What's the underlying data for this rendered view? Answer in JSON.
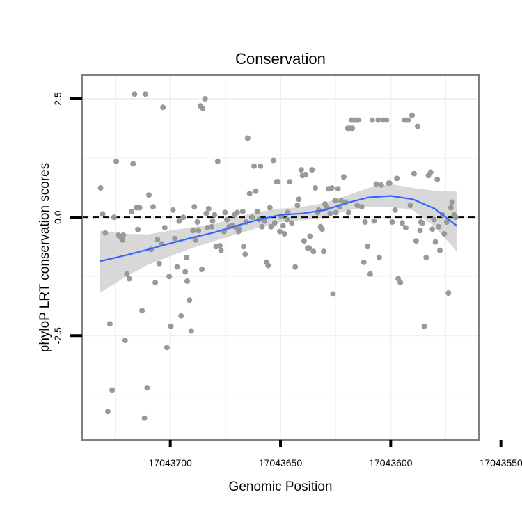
{
  "chart_data": {
    "type": "scatter",
    "title": "Conservation",
    "xlabel": "Genomic Position",
    "ylabel": "phyloP LRT conservation scores",
    "x_reversed": true,
    "xlim": [
      17043560,
      17043740
    ],
    "ylim": [
      -4.7,
      3.0
    ],
    "x_ticks": [
      17043700,
      17043650,
      17043600,
      17043550
    ],
    "x_tick_labels": [
      "17043700",
      "17043650",
      "17043600",
      "17043550"
    ],
    "y_ticks": [
      -2.5,
      0.0,
      2.5
    ],
    "y_tick_labels": [
      "-2.5",
      "0.0",
      "2.5"
    ],
    "grid": true,
    "reference_line": {
      "y": 0,
      "style": "dashed"
    },
    "colors": {
      "points": "#999999",
      "smooth_line": "#3366ff",
      "confidence_band": "#d6d6d6",
      "panel_border": "#808080",
      "grid": "#f0f0f0"
    },
    "points": [
      {
        "x": 17043731.6,
        "y": 0.62
      },
      {
        "x": 17043730.7,
        "y": 0.07
      },
      {
        "x": 17043729.5,
        "y": -0.33
      },
      {
        "x": 17043728.3,
        "y": -4.1
      },
      {
        "x": 17043727.4,
        "y": -2.25
      },
      {
        "x": 17043726.4,
        "y": -3.65
      },
      {
        "x": 17043725.5,
        "y": 0.0
      },
      {
        "x": 17043724.5,
        "y": 1.18
      },
      {
        "x": 17043723.6,
        "y": -0.38
      },
      {
        "x": 17043722.6,
        "y": -0.42
      },
      {
        "x": 17043721.6,
        "y": -0.48
      },
      {
        "x": 17043721.3,
        "y": -0.38
      },
      {
        "x": 17043720.5,
        "y": -2.6
      },
      {
        "x": 17043719.6,
        "y": -1.2
      },
      {
        "x": 17043718.6,
        "y": -1.3
      },
      {
        "x": 17043717.6,
        "y": 0.12
      },
      {
        "x": 17043716.9,
        "y": 1.13
      },
      {
        "x": 17043716.2,
        "y": 2.6
      },
      {
        "x": 17043715.3,
        "y": 0.2
      },
      {
        "x": 17043714.7,
        "y": -0.26
      },
      {
        "x": 17043713.9,
        "y": 0.2
      },
      {
        "x": 17043712.8,
        "y": -1.97
      },
      {
        "x": 17043711.7,
        "y": -4.24
      },
      {
        "x": 17043711.3,
        "y": 2.6
      },
      {
        "x": 17043710.5,
        "y": -3.6
      },
      {
        "x": 17043709.7,
        "y": 0.47
      },
      {
        "x": 17043708.7,
        "y": -0.68
      },
      {
        "x": 17043707.8,
        "y": 0.22
      },
      {
        "x": 17043706.8,
        "y": -1.38
      },
      {
        "x": 17043705.8,
        "y": -0.47
      },
      {
        "x": 17043705.0,
        "y": -0.98
      },
      {
        "x": 17043704.0,
        "y": -0.56
      },
      {
        "x": 17043703.3,
        "y": 2.32
      },
      {
        "x": 17043702.5,
        "y": -0.22
      },
      {
        "x": 17043701.5,
        "y": -2.75
      },
      {
        "x": 17043700.5,
        "y": -1.25
      },
      {
        "x": 17043699.7,
        "y": -2.3
      },
      {
        "x": 17043698.8,
        "y": 0.15
      },
      {
        "x": 17043697.9,
        "y": -0.45
      },
      {
        "x": 17043696.9,
        "y": -1.05
      },
      {
        "x": 17043696.0,
        "y": -0.08
      },
      {
        "x": 17043695.1,
        "y": -2.08
      },
      {
        "x": 17043694.1,
        "y": 0.0
      },
      {
        "x": 17043693.2,
        "y": -1.15
      },
      {
        "x": 17043692.6,
        "y": -0.85
      },
      {
        "x": 17043692.3,
        "y": -1.35
      },
      {
        "x": 17043691.3,
        "y": -1.75
      },
      {
        "x": 17043690.5,
        "y": -2.4
      },
      {
        "x": 17043689.7,
        "y": -0.28
      },
      {
        "x": 17043689.1,
        "y": 0.22
      },
      {
        "x": 17043688.6,
        "y": -0.48
      },
      {
        "x": 17043687.7,
        "y": -0.1
      },
      {
        "x": 17043687.2,
        "y": -0.28
      },
      {
        "x": 17043686.3,
        "y": 2.35
      },
      {
        "x": 17043685.7,
        "y": -1.1
      },
      {
        "x": 17043685.3,
        "y": 2.3
      },
      {
        "x": 17043684.2,
        "y": 2.5
      },
      {
        "x": 17043683.7,
        "y": 0.08
      },
      {
        "x": 17043683.2,
        "y": -0.22
      },
      {
        "x": 17043682.6,
        "y": 0.18
      },
      {
        "x": 17043681.2,
        "y": -0.2
      },
      {
        "x": 17043680.8,
        "y": -0.08
      },
      {
        "x": 17043679.9,
        "y": 0.05
      },
      {
        "x": 17043679.2,
        "y": -0.62
      },
      {
        "x": 17043678.5,
        "y": 1.18
      },
      {
        "x": 17043677.5,
        "y": -0.6
      },
      {
        "x": 17043677.0,
        "y": -0.7
      },
      {
        "x": 17043675.6,
        "y": -0.3
      },
      {
        "x": 17043675.1,
        "y": 0.1
      },
      {
        "x": 17043674.3,
        "y": -0.05
      },
      {
        "x": 17043673.3,
        "y": -0.2
      },
      {
        "x": 17043671.8,
        "y": -0.18
      },
      {
        "x": 17043670.9,
        "y": 0.05
      },
      {
        "x": 17043670.1,
        "y": -0.22
      },
      {
        "x": 17043669.6,
        "y": 0.1
      },
      {
        "x": 17043669.0,
        "y": -0.3
      },
      {
        "x": 17043668.8,
        "y": -0.25
      },
      {
        "x": 17043667.1,
        "y": 0.12
      },
      {
        "x": 17043666.7,
        "y": -0.62
      },
      {
        "x": 17043666.0,
        "y": -0.78
      },
      {
        "x": 17043665.6,
        "y": -0.1
      },
      {
        "x": 17043664.9,
        "y": 1.67
      },
      {
        "x": 17043664.0,
        "y": 0.5
      },
      {
        "x": 17043662.9,
        "y": 0.0
      },
      {
        "x": 17043662.0,
        "y": 1.08
      },
      {
        "x": 17043661.2,
        "y": 0.55
      },
      {
        "x": 17043660.5,
        "y": 0.12
      },
      {
        "x": 17043659.7,
        "y": -0.05
      },
      {
        "x": 17043659.1,
        "y": 1.08
      },
      {
        "x": 17043658.4,
        "y": -0.2
      },
      {
        "x": 17043657.2,
        "y": -0.08
      },
      {
        "x": 17043656.3,
        "y": -0.95
      },
      {
        "x": 17043655.6,
        "y": -1.02
      },
      {
        "x": 17043654.8,
        "y": 0.2
      },
      {
        "x": 17043654.3,
        "y": -0.2
      },
      {
        "x": 17043653.2,
        "y": 1.2
      },
      {
        "x": 17043652.6,
        "y": -0.12
      },
      {
        "x": 17043651.8,
        "y": 0.75
      },
      {
        "x": 17043651.1,
        "y": 0.75
      },
      {
        "x": 17043650.3,
        "y": -0.3
      },
      {
        "x": 17043649.7,
        "y": 0.02
      },
      {
        "x": 17043648.8,
        "y": -0.18
      },
      {
        "x": 17043648.2,
        "y": -0.35
      },
      {
        "x": 17043647.0,
        "y": -0.05
      },
      {
        "x": 17043646.7,
        "y": 0.1
      },
      {
        "x": 17043645.8,
        "y": 0.75
      },
      {
        "x": 17043644.9,
        "y": -0.12
      },
      {
        "x": 17043643.3,
        "y": -1.05
      },
      {
        "x": 17043642.3,
        "y": 0.25
      },
      {
        "x": 17043641.7,
        "y": 0.38
      },
      {
        "x": 17043640.6,
        "y": 1.0
      },
      {
        "x": 17043640.0,
        "y": 0.88
      },
      {
        "x": 17043639.3,
        "y": -0.5
      },
      {
        "x": 17043638.6,
        "y": 0.9
      },
      {
        "x": 17043637.7,
        "y": -0.65
      },
      {
        "x": 17043637.0,
        "y": -0.65
      },
      {
        "x": 17043636.6,
        "y": -0.4
      },
      {
        "x": 17043635.7,
        "y": 1.0
      },
      {
        "x": 17043635.1,
        "y": -0.72
      },
      {
        "x": 17043634.2,
        "y": 0.62
      },
      {
        "x": 17043633.2,
        "y": 0.1
      },
      {
        "x": 17043632.7,
        "y": 0.15
      },
      {
        "x": 17043631.8,
        "y": -0.2
      },
      {
        "x": 17043631.1,
        "y": -0.25
      },
      {
        "x": 17043630.4,
        "y": -0.72
      },
      {
        "x": 17043629.8,
        "y": 0.28
      },
      {
        "x": 17043628.9,
        "y": 0.2
      },
      {
        "x": 17043628.2,
        "y": 0.6
      },
      {
        "x": 17043627.5,
        "y": 0.08
      },
      {
        "x": 17043626.7,
        "y": 0.62
      },
      {
        "x": 17043626.2,
        "y": -1.62
      },
      {
        "x": 17043625.2,
        "y": 0.35
      },
      {
        "x": 17043624.9,
        "y": 0.1
      },
      {
        "x": 17043623.9,
        "y": 0.6
      },
      {
        "x": 17043623.2,
        "y": 0.22
      },
      {
        "x": 17043622.5,
        "y": 0.35
      },
      {
        "x": 17043621.3,
        "y": 0.85
      },
      {
        "x": 17043620.4,
        "y": 0.32
      },
      {
        "x": 17043619.5,
        "y": 1.88
      },
      {
        "x": 17043619.1,
        "y": 0.1
      },
      {
        "x": 17043618.5,
        "y": 1.88
      },
      {
        "x": 17043617.7,
        "y": 2.05
      },
      {
        "x": 17043617.4,
        "y": 1.88
      },
      {
        "x": 17043616.7,
        "y": 2.05
      },
      {
        "x": 17043615.6,
        "y": 2.05
      },
      {
        "x": 17043615.2,
        "y": 0.25
      },
      {
        "x": 17043614.7,
        "y": 2.05
      },
      {
        "x": 17043613.2,
        "y": 0.22
      },
      {
        "x": 17043612.2,
        "y": -0.95
      },
      {
        "x": 17043611.6,
        "y": -0.1
      },
      {
        "x": 17043610.5,
        "y": -0.62
      },
      {
        "x": 17043609.3,
        "y": -1.2
      },
      {
        "x": 17043608.4,
        "y": 2.05
      },
      {
        "x": 17043607.6,
        "y": -0.08
      },
      {
        "x": 17043606.6,
        "y": 0.7
      },
      {
        "x": 17043605.7,
        "y": 2.05
      },
      {
        "x": 17043605.2,
        "y": -0.85
      },
      {
        "x": 17043604.3,
        "y": 0.68
      },
      {
        "x": 17043603.5,
        "y": 2.05
      },
      {
        "x": 17043601.9,
        "y": 2.05
      },
      {
        "x": 17043600.9,
        "y": 0.72
      },
      {
        "x": 17043600.5,
        "y": 0.72
      },
      {
        "x": 17043599.3,
        "y": -0.1
      },
      {
        "x": 17043598.0,
        "y": 0.15
      },
      {
        "x": 17043597.2,
        "y": 0.82
      },
      {
        "x": 17043596.6,
        "y": -1.3
      },
      {
        "x": 17043595.6,
        "y": -1.38
      },
      {
        "x": 17043594.8,
        "y": -0.12
      },
      {
        "x": 17043593.7,
        "y": 2.05
      },
      {
        "x": 17043593.2,
        "y": -0.22
      },
      {
        "x": 17043592.1,
        "y": 2.05
      },
      {
        "x": 17043591.1,
        "y": 0.25
      },
      {
        "x": 17043590.3,
        "y": 2.15
      },
      {
        "x": 17043589.4,
        "y": 0.92
      },
      {
        "x": 17043588.5,
        "y": -0.5
      },
      {
        "x": 17043587.8,
        "y": 1.92
      },
      {
        "x": 17043586.7,
        "y": -0.28
      },
      {
        "x": 17043586.3,
        "y": -0.1
      },
      {
        "x": 17043585.6,
        "y": -0.12
      },
      {
        "x": 17043584.8,
        "y": -2.3
      },
      {
        "x": 17043583.9,
        "y": -0.85
      },
      {
        "x": 17043582.9,
        "y": 0.88
      },
      {
        "x": 17043581.9,
        "y": 0.95
      },
      {
        "x": 17043581.1,
        "y": -0.25
      },
      {
        "x": 17043580.3,
        "y": -0.05
      },
      {
        "x": 17043579.7,
        "y": -0.52
      },
      {
        "x": 17043578.9,
        "y": 0.8
      },
      {
        "x": 17043578.3,
        "y": -0.2
      },
      {
        "x": 17043577.7,
        "y": -0.7
      },
      {
        "x": 17043576.4,
        "y": 0.05
      },
      {
        "x": 17043575.7,
        "y": -0.35
      },
      {
        "x": 17043574.6,
        "y": -0.1
      },
      {
        "x": 17043573.8,
        "y": -1.6
      },
      {
        "x": 17043572.7,
        "y": 0.2
      },
      {
        "x": 17043572.1,
        "y": 0.32
      },
      {
        "x": 17043571.2,
        "y": 0.05
      },
      {
        "x": 17043570.5,
        "y": 0.0
      }
    ],
    "smooth_line": {
      "x": [
        17043732,
        17043720,
        17043710,
        17043700,
        17043690,
        17043680,
        17043670,
        17043660,
        17043650,
        17043640,
        17043630,
        17043620,
        17043610,
        17043600,
        17043590,
        17043580,
        17043570
      ],
      "y": [
        -0.93,
        -0.8,
        -0.68,
        -0.55,
        -0.43,
        -0.32,
        -0.18,
        -0.05,
        0.05,
        0.08,
        0.15,
        0.3,
        0.42,
        0.45,
        0.38,
        0.18,
        -0.18
      ],
      "lower": [
        -1.6,
        -1.25,
        -1.0,
        -0.82,
        -0.65,
        -0.5,
        -0.36,
        -0.22,
        -0.1,
        -0.06,
        0.0,
        0.14,
        0.22,
        0.22,
        0.15,
        -0.2,
        -0.72
      ],
      "upper": [
        -0.28,
        -0.35,
        -0.36,
        -0.28,
        -0.21,
        -0.14,
        0.0,
        0.12,
        0.18,
        0.22,
        0.3,
        0.46,
        0.62,
        0.7,
        0.62,
        0.56,
        0.54
      ]
    }
  }
}
